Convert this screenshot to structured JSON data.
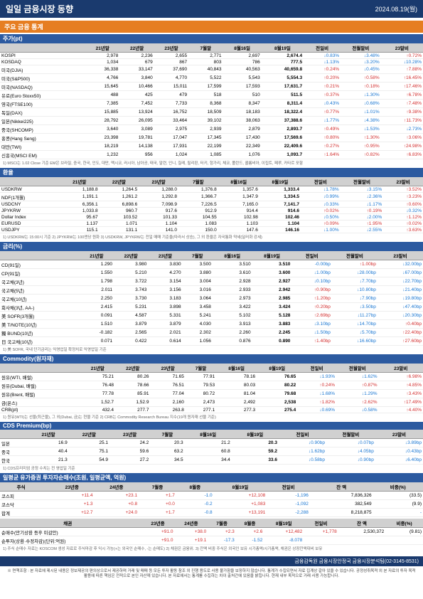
{
  "header": {
    "title": "일일 금융시장 동향",
    "date": "2024.08.19(월)"
  },
  "main_section": "주요 금융 통계",
  "stock": {
    "title": "주가(pt)",
    "cols": [
      "",
      "21년말",
      "22년말",
      "23년말",
      "7월말",
      "8월16일",
      "8월19일",
      "전일비",
      "전월말비",
      "23말비"
    ],
    "rows": [
      [
        "KOSPI",
        "2,978",
        "2,236",
        "2,655",
        "2,771",
        "2,697",
        "2,674.4",
        "↓0.83%",
        "↓3.48%",
        "↑0.72%"
      ],
      [
        "KOSDAQ",
        "1,034",
        "679",
        "867",
        "803",
        "786",
        "777.5",
        "↓1.13%",
        "↓3.20%",
        "↓10.28%"
      ],
      [
        "미국(DJIA)",
        "36,338",
        "33,147",
        "37,690",
        "40,843",
        "40,563",
        "40,659.8",
        "↑0.24%",
        "↓0.45%",
        "↑7.88%"
      ],
      [
        "미국(S&P500)",
        "4,766",
        "3,840",
        "4,770",
        "5,522",
        "5,543",
        "5,554.3",
        "↑0.20%",
        "↑0.58%",
        "↑16.45%"
      ],
      [
        "미국(NASDAQ)",
        "15,645",
        "10,466",
        "15,011",
        "17,599",
        "17,593",
        "17,631.7",
        "↑0.21%",
        "↑0.18%",
        "↑17.46%"
      ],
      [
        "유로(Euro Stoxx50)",
        "488",
        "425",
        "479",
        "518",
        "510",
        "511.5",
        "↑0.37%",
        "↓1.30%",
        "↑6.78%"
      ],
      [
        "영국(FTSE100)",
        "7,385",
        "7,452",
        "7,733",
        "8,368",
        "8,347",
        "8,311.4",
        "↓0.43%",
        "↓0.68%",
        "↑7.48%"
      ],
      [
        "독일(DAX)",
        "15,885",
        "13,924",
        "16,752",
        "18,509",
        "18,183",
        "18,322.4",
        "↑0.77%",
        "↓1.01%",
        "↑9.38%"
      ],
      [
        "일본(Nikkei225)",
        "28,792",
        "26,095",
        "33,464",
        "39,102",
        "38,063",
        "37,388.6",
        "↓1.77%",
        "↓4.38%",
        "↑11.73%"
      ],
      [
        "중국(SHCOMP)",
        "3,640",
        "3,089",
        "2,975",
        "2,939",
        "2,879",
        "2,893.7",
        "↑0.49%",
        "↓1.53%",
        "↓2.73%"
      ],
      [
        "홍콩(Hang Seng)",
        "23,398",
        "19,781",
        "17,047",
        "17,345",
        "17,430",
        "17,569.6",
        "↑0.80%",
        "↑1.30%",
        "↑3.06%"
      ],
      [
        "대만(TWI)",
        "18,219",
        "14,138",
        "17,931",
        "22,199",
        "22,349",
        "22,409.6",
        "↑0.27%",
        "↑0.95%",
        "↑24.98%"
      ],
      [
        "신흥국(MSCI EM)",
        "1,232",
        "956",
        "1,024",
        "1,085",
        "1,076",
        "1,093.7",
        "↑1.64%",
        "↑0.82%",
        "↑6.83%"
      ]
    ],
    "note": "1) MSCI는 1.02 Close 기준 EM은 브라질, 중국, 한국, 인도, 대만, 멕시코, 러시아, 남아공, 태국, 말련, 인니, 칠레, 필리핀, 터키, 헝가리, 체코, 폴란드, 콜롬비아, 이집트, 페루, 카타르 포함"
  },
  "fx": {
    "title": "환율",
    "cols": [
      "",
      "21년말",
      "22년말",
      "23년말",
      "7월말",
      "8월16일",
      "8월19일",
      "전일비",
      "전월말비",
      "23말비"
    ],
    "rows": [
      [
        "USDKRW",
        "1,188.8",
        "1,264.5",
        "1,288.0",
        "1,376.8",
        "1,357.6",
        "1,333.4",
        "↓1.78%",
        "↓3.15%",
        "↑3.52%"
      ],
      [
        "NDF(1개월)",
        "1,191.1",
        "1,261.2",
        "1,292.8",
        "1,366.7",
        "1,347.9",
        "1,334.5",
        "↓0.99%",
        "↓2.36%",
        "↑3.23%"
      ],
      [
        "USDCNY",
        "6,356.1",
        "6,898.6",
        "7,098.9",
        "7,226.5",
        "7,165.0",
        "7,141.7",
        "↓0.33%",
        "↓1.17%",
        "↑0.60%"
      ],
      [
        "JPYKRW",
        "1,033.8",
        "960.7",
        "917.6",
        "912.9",
        "914.4",
        "914.6",
        "↑0.02%",
        "↑0.19%",
        "↓0.32%"
      ],
      [
        "Dollar Index",
        "95.67",
        "103.52",
        "101.33",
        "104.55",
        "102.98",
        "102.46",
        "↓0.50%",
        "↓2.00%",
        "↑1.12%"
      ],
      [
        "EURUSD",
        "1.137",
        "1.071",
        "1.104",
        "1.083",
        "1.103",
        "1.104",
        "↑0.09%",
        "↑1.95%",
        "↑0.02%"
      ],
      [
        "USDJPY",
        "115.1",
        "131.1",
        "141.0",
        "150.0",
        "147.6",
        "146.16",
        "↓1.00%",
        "↓2.55%",
        "↑3.63%"
      ]
    ],
    "note": "1) USDKRW는 15:00시 기준 2) JPYKRW는 100엔당 원화 3) USDKRW, JPYKRW는 전일 매매 기준율(따라서 상승), 그 외 환율은 자국통화 약세(달러화 강세)"
  },
  "rates": {
    "title": "금리(%)",
    "cols": [
      "",
      "21년말",
      "22년말",
      "23년말",
      "7월말",
      "8월16일",
      "8월19일",
      "전일비",
      "전월말비",
      "23말비"
    ],
    "rows": [
      [
        "CD(91일)",
        "1.290",
        "3.980",
        "3.830",
        "3.500",
        "3.510",
        "3.510",
        "-0.00bp",
        "↑1.00bp",
        "↓32.00bp"
      ],
      [
        "CP(91일)",
        "1.550",
        "5.210",
        "4.270",
        "3.880",
        "3.610",
        "3.600",
        "↓1.00bp",
        "↓28.00bp",
        "↓67.00bp"
      ],
      [
        "국고채(3년)",
        "1.798",
        "3.722",
        "3.154",
        "3.004",
        "2.928",
        "2.927",
        "↓0.10bp",
        "↓7.70bp",
        "↓22.70bp"
      ],
      [
        "국고채(5년)",
        "2.011",
        "3.743",
        "3.156",
        "3.016",
        "2.933",
        "2.942",
        "↑0.90bp",
        "↓10.80bp",
        "↓21.40bp"
      ],
      [
        "국고채(10년)",
        "2.250",
        "3.730",
        "3.183",
        "3.064",
        "2.973",
        "2.985",
        "↑1.20bp",
        "↓7.90bp",
        "↓19.80bp"
      ],
      [
        "회사채(3년, AA-)",
        "2.415",
        "5.231",
        "3.898",
        "3.458",
        "3.422",
        "3.424",
        "↑0.20bp",
        "↓3.50bp",
        "↓47.40bp"
      ],
      [
        "美 SOFR(3개월)",
        "0.091",
        "4.587",
        "5.331",
        "5.241",
        "5.102",
        "5.128",
        "↑2.69bp",
        "↓11.27bp",
        "↓20.30bp"
      ],
      [
        "美 T/NOTE(10년)",
        "1.510",
        "3.879",
        "3.879",
        "4.030",
        "3.913",
        "3.883",
        "↓3.10bp",
        "↓14.70bp",
        "↑0.40bp"
      ],
      [
        "獨 BUND(10년)",
        "-0.182",
        "2.565",
        "2.021",
        "2.302",
        "2.260",
        "2.245",
        "↓1.50bp",
        "↓5.70bp",
        "↑22.40bp"
      ],
      [
        "日 국고채(10년)",
        "0.071",
        "0.422",
        "0.614",
        "1.056",
        "0.876",
        "0.890",
        "↑1.40bp",
        "↓16.60bp",
        "↑27.60bp"
      ]
    ],
    "note": "1) 美 SOFR, 국내 단기금리는 익영업일 확정치로 익영업일 기준"
  },
  "commodity": {
    "title": "Commodity(원자재)",
    "cols": [
      "",
      "21년말",
      "22년말",
      "23년말",
      "7월말",
      "8월16일",
      "8월19일",
      "전일비",
      "전월말비",
      "23말비"
    ],
    "rows": [
      [
        "원유(WTI, 배럴)",
        "75.21",
        "80.26",
        "71.65",
        "77.91",
        "78.16",
        "76.65",
        "↓1.93%",
        "↓1.62%",
        "↑6.98%"
      ],
      [
        "원유(Dubai, 배럴)",
        "76.48",
        "78.66",
        "76.51",
        "79.53",
        "80.03",
        "80.22",
        "↑0.24%",
        "↑0.87%",
        "↑4.85%"
      ],
      [
        "원유(Brent, 배럴)",
        "77.78",
        "85.91",
        "77.04",
        "80.72",
        "81.04",
        "79.68",
        "↓1.68%",
        "↓1.29%",
        "↑3.43%"
      ],
      [
        "금(온스)",
        "1,52.7",
        "1,52.9",
        "2,160",
        "2,473",
        "2,492",
        "2,538",
        "↑1.82%",
        "↑2.62%",
        "↑17.49%"
      ],
      [
        "CRB(pt)",
        "432.4",
        "277.7",
        "263.8",
        "277.1",
        "277.3",
        "275.4",
        "↓0.69%",
        "↓0.58%",
        "↑4.40%"
      ]
    ],
    "note": "1) 원유(WTI)는 선물(최근물), 그 외(Dubai, 금)는 현물 기준 2) CRB는 Commodity Research Bureau 지수(19개 원자재 선물 기준)"
  },
  "cds": {
    "title": "CDS Premium(bp)",
    "cols": [
      "",
      "21년말",
      "22년말",
      "23년말",
      "7월말",
      "8월16일",
      "8월19일",
      "전일비",
      "전월말비",
      "23말비"
    ],
    "rows": [
      [
        "일본",
        "16.9",
        "25.1",
        "24.2",
        "20.3",
        "21.2",
        "20.3",
        "↓0.90bp",
        "↓0.07bp",
        "↓3.89bp"
      ],
      [
        "중국",
        "40.4",
        "75.1",
        "59.6",
        "63.2",
        "60.8",
        "59.2",
        "↓1.62bp",
        "↓4.05bp",
        "↓0.43bp"
      ],
      [
        "한국",
        "21.3",
        "54.9",
        "27.2",
        "34.5",
        "34.4",
        "33.6",
        "↓0.58bp",
        "↓0.90bp",
        "↓6.40bp"
      ]
    ],
    "note": "1) CDS프리미엄 공정 수치는 전 영업일 기준"
  },
  "flow": {
    "title": "일평균 유가증권 투자자순매수(조원, 일평균액, 억원)",
    "cols": [
      "주식",
      "",
      "23년중",
      "24년중",
      "7월중",
      "8월중",
      "8월19일",
      "전일비",
      "잔 액",
      "비중(%)"
    ],
    "rows": [
      [
        "코스피",
        "",
        "+11.4",
        "+23.1",
        "+1.7",
        "-1.0",
        "+12,108",
        "-1,196",
        "7,836,326",
        "(33.5)"
      ],
      [
        "코스닥",
        "",
        "+1.3",
        "+0.8",
        "+0.0",
        "-0.2",
        "+1,083",
        "-1,092",
        "382,549",
        "(9.9)"
      ],
      [
        "합계",
        "",
        "+12.7",
        "+24.0",
        "+1.7",
        "-0.8",
        "+13,191",
        "-2,288",
        "8,218,875",
        "-"
      ]
    ],
    "cols2": [
      "채권",
      "",
      "23년중",
      "24년중",
      "7월중",
      "8월중",
      "8월19일",
      "전일비",
      "잔 액",
      "비중(%)"
    ],
    "rows2": [
      [
        "순매수(만기상환 등후 미감안)",
        "",
        "+91.0",
        "+38.0",
        "+2.3",
        "+2.6",
        "+12,482",
        "+1,778",
        "2,530,372",
        "(9.81)"
      ],
      [
        "순투자(상환·수정차감)(단위:억원)",
        "",
        "+91.0",
        "+19.1",
        "-17.3",
        "-1.52",
        "-8.078",
        "",
        "",
        ""
      ]
    ],
    "note": "1) 주식 순매수 자료는 KOSCOM 생성 자료로 주식마감 후 익시 가능(+는 외국인 순매수, -는 순매도) 2) 채권은 금융위. 3) 잔액 비중 주식은 외국인 보유 시가총액/시가총액, 채권은 상장잔액대비 보유"
  },
  "bottom": "금융감독원 금융시장안정국 금융시장분석팀(02-3145-8531)",
  "disclaimer": "※ 면책조항 : 본 자료에 제시된 내용은 정보제공의 편의상으로서 제공하며 거래 및 매매 등 모든 투자 활동 참조 외 진행 용도로 사용 불가함을 보장하지 않습니다. 통계가 수집되면서 자료 집계상 갈아 있을 수 있습니다. 공정성취목적 외 본 자료의 투자 목적 활용에 따른 책임은 전적으로 본인 자산께 있습니다. 본 자료에서는 통계를 수집하는 차이 출처간에 있음을 밝힙니다. 현재 내부 목적으로 거래 사용 가능합니다."
}
